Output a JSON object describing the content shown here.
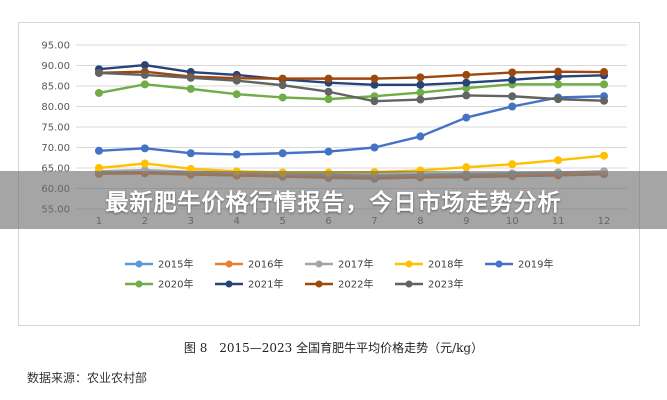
{
  "banner": {
    "title": "最新肥牛价格行情报告，今日市场走势分析"
  },
  "caption": {
    "figure_no": "图 8",
    "text": "2015—2023 全国育肥牛平均价格走势（元/kg）"
  },
  "source": "数据来源：农业农村部",
  "chart_data": {
    "type": "line",
    "title": "",
    "xlabel": "",
    "ylabel": "",
    "x": [
      1,
      2,
      3,
      4,
      5,
      6,
      7,
      8,
      9,
      10,
      11,
      12
    ],
    "ylim": [
      55,
      95
    ],
    "yticks": [
      "55.00",
      "60.00",
      "65.00",
      "70.00",
      "75.00",
      "80.00",
      "85.00",
      "90.00",
      "95.00"
    ],
    "grid": "horizontal",
    "legend_position": "bottom",
    "series": [
      {
        "name": "2015年",
        "color": "#5b9bd5",
        "values": [
          63.8,
          63.9,
          63.5,
          63.2,
          62.9,
          62.6,
          62.4,
          62.7,
          62.8,
          63.0,
          63.2,
          63.5
        ]
      },
      {
        "name": "2016年",
        "color": "#ed7d31",
        "values": [
          63.6,
          63.7,
          63.4,
          63.2,
          63.0,
          62.8,
          62.6,
          62.8,
          63.0,
          63.1,
          63.3,
          63.6
        ]
      },
      {
        "name": "2017年",
        "color": "#a5a5a5",
        "values": [
          64.2,
          64.5,
          64.1,
          63.8,
          63.5,
          63.3,
          63.1,
          63.3,
          63.5,
          63.7,
          63.9,
          64.2
        ]
      },
      {
        "name": "2018年",
        "color": "#ffc000",
        "values": [
          65.0,
          66.1,
          64.8,
          64.2,
          63.9,
          63.9,
          64.0,
          64.4,
          65.2,
          65.9,
          66.9,
          68.0
        ]
      },
      {
        "name": "2019年",
        "color": "#4472c4",
        "values": [
          69.2,
          69.8,
          68.6,
          68.3,
          68.6,
          69.0,
          70.0,
          72.7,
          77.3,
          80.0,
          82.2,
          82.5
        ]
      },
      {
        "name": "2020年",
        "color": "#70ad47",
        "values": [
          83.3,
          85.4,
          84.3,
          83.0,
          82.2,
          81.8,
          82.5,
          83.4,
          84.5,
          85.4,
          85.4,
          85.4
        ]
      },
      {
        "name": "2021年",
        "color": "#264478",
        "values": [
          89.1,
          90.1,
          88.4,
          87.7,
          86.6,
          85.8,
          85.3,
          85.3,
          85.8,
          86.5,
          87.3,
          87.6
        ]
      },
      {
        "name": "2022年",
        "color": "#9e480e",
        "values": [
          88.2,
          88.5,
          87.3,
          86.9,
          86.8,
          86.8,
          86.8,
          87.1,
          87.7,
          88.3,
          88.5,
          88.4
        ]
      },
      {
        "name": "2023年",
        "color": "#636363",
        "values": [
          88.2,
          87.7,
          87.0,
          86.3,
          85.2,
          83.6,
          81.3,
          81.7,
          82.7,
          82.5,
          81.8,
          81.4
        ]
      }
    ]
  }
}
